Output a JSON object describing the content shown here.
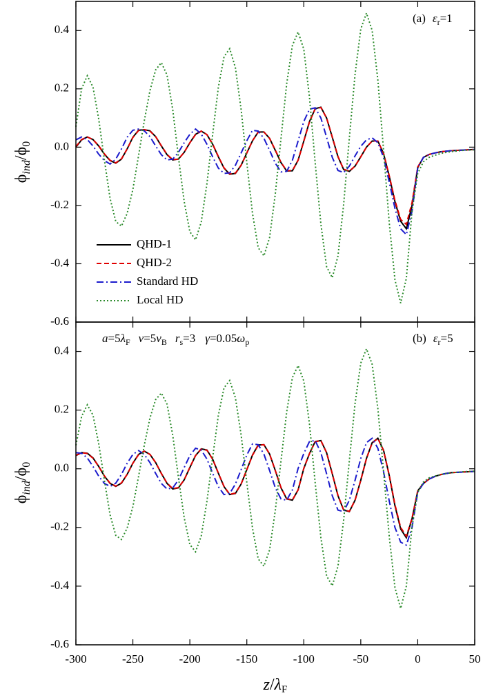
{
  "chart_data": [
    {
      "type": "line",
      "y_label": [
        "ϕ",
        "ind",
        "/ϕ",
        "0"
      ],
      "annotation": [
        "(a)",
        "ε",
        "r",
        "=1"
      ],
      "xlim": [
        -300,
        50
      ],
      "xticks": [
        -300,
        -250,
        -200,
        -150,
        -100,
        -50,
        0,
        50
      ],
      "ylim": [
        -0.6,
        0.5
      ],
      "yticks": [
        -0.6,
        -0.4,
        -0.2,
        {
          "value": 0,
          "label": "0.0"
        },
        0.2,
        0.4
      ],
      "legend": "lower left",
      "x": [
        -300,
        -295,
        -290,
        -285,
        -280,
        -275,
        -270,
        -265,
        -260,
        -255,
        -250,
        -245,
        -240,
        -235,
        -230,
        -225,
        -220,
        -215,
        -210,
        -205,
        -200,
        -195,
        -190,
        -185,
        -180,
        -175,
        -170,
        -165,
        -160,
        -155,
        -150,
        -145,
        -140,
        -135,
        -130,
        -125,
        -120,
        -115,
        -110,
        -105,
        -100,
        -95,
        -90,
        -85,
        -80,
        -75,
        -70,
        -65,
        -60,
        -55,
        -50,
        -45,
        -40,
        -35,
        -30,
        -25,
        -20,
        -15,
        -10,
        -5,
        0,
        5,
        10,
        15,
        20,
        25,
        30,
        35,
        40,
        45,
        50
      ],
      "series": [
        {
          "name": "QHD-1",
          "color": "#000000",
          "style": "solid",
          "values": [
            0.0,
            0.025,
            0.035,
            0.026,
            0.004,
            -0.024,
            -0.046,
            -0.055,
            -0.041,
            -0.006,
            0.034,
            0.058,
            0.06,
            0.056,
            0.036,
            0.004,
            -0.026,
            -0.044,
            -0.041,
            -0.018,
            0.015,
            0.044,
            0.055,
            0.043,
            0.01,
            -0.033,
            -0.072,
            -0.093,
            -0.09,
            -0.062,
            -0.02,
            0.022,
            0.052,
            0.052,
            0.03,
            -0.011,
            -0.053,
            -0.082,
            -0.081,
            -0.045,
            0.021,
            0.088,
            0.132,
            0.137,
            0.1,
            0.034,
            -0.033,
            -0.077,
            -0.083,
            -0.065,
            -0.033,
            0.0,
            0.021,
            0.021,
            -0.022,
            -0.1,
            -0.187,
            -0.254,
            -0.28,
            -0.2,
            -0.07,
            -0.035,
            -0.025,
            -0.02,
            -0.016,
            -0.014,
            -0.012,
            -0.011,
            -0.01,
            -0.009,
            -0.008
          ]
        },
        {
          "name": "QHD-2",
          "color": "#e00000",
          "style": "dashed",
          "values": [
            0.002,
            0.026,
            0.035,
            0.026,
            0.005,
            -0.023,
            -0.045,
            -0.054,
            -0.04,
            -0.006,
            0.033,
            0.057,
            0.06,
            0.055,
            0.036,
            0.005,
            -0.025,
            -0.043,
            -0.041,
            -0.018,
            0.015,
            0.043,
            0.055,
            0.043,
            0.011,
            -0.032,
            -0.071,
            -0.092,
            -0.089,
            -0.062,
            -0.02,
            0.022,
            0.051,
            0.052,
            0.03,
            -0.01,
            -0.052,
            -0.081,
            -0.08,
            -0.045,
            0.02,
            0.087,
            0.131,
            0.136,
            0.1,
            0.035,
            -0.032,
            -0.076,
            -0.082,
            -0.065,
            -0.033,
            0.0,
            0.021,
            0.021,
            -0.021,
            -0.098,
            -0.183,
            -0.248,
            -0.265,
            -0.19,
            -0.068,
            -0.035,
            -0.025,
            -0.02,
            -0.016,
            -0.014,
            -0.012,
            -0.011,
            -0.01,
            -0.009,
            -0.008
          ]
        },
        {
          "name": "Standard HD",
          "color": "#1a1acc",
          "style": "dashdot",
          "values": [
            0.025,
            0.035,
            0.026,
            0.004,
            -0.024,
            -0.046,
            -0.058,
            -0.041,
            -0.006,
            0.034,
            0.058,
            0.062,
            0.056,
            0.036,
            0.004,
            -0.026,
            -0.044,
            -0.041,
            -0.018,
            0.015,
            0.044,
            0.062,
            0.045,
            0.01,
            -0.033,
            -0.072,
            -0.09,
            -0.088,
            -0.062,
            -0.02,
            0.022,
            0.058,
            0.055,
            0.03,
            -0.011,
            -0.055,
            -0.085,
            -0.083,
            -0.045,
            0.021,
            0.088,
            0.13,
            0.135,
            0.1,
            0.034,
            -0.035,
            -0.08,
            -0.087,
            -0.065,
            -0.03,
            0.003,
            0.025,
            0.032,
            0.015,
            -0.035,
            -0.12,
            -0.21,
            -0.28,
            -0.3,
            -0.22,
            -0.07,
            -0.035,
            -0.025,
            -0.02,
            -0.016,
            -0.014,
            -0.012,
            -0.011,
            -0.01,
            -0.009,
            -0.008
          ]
        },
        {
          "name": "Local HD",
          "color": "#2a8a2a",
          "style": "dotted",
          "values": [
            0.07,
            0.2,
            0.245,
            0.206,
            0.097,
            -0.044,
            -0.176,
            -0.255,
            -0.271,
            -0.227,
            -0.145,
            -0.029,
            0.09,
            0.194,
            0.265,
            0.29,
            0.247,
            0.128,
            -0.034,
            -0.186,
            -0.29,
            -0.318,
            -0.257,
            -0.125,
            0.043,
            0.205,
            0.31,
            0.338,
            0.272,
            0.129,
            -0.053,
            -0.228,
            -0.345,
            -0.373,
            -0.31,
            -0.16,
            0.03,
            0.218,
            0.349,
            0.395,
            0.336,
            0.171,
            -0.054,
            -0.264,
            -0.41,
            -0.448,
            -0.373,
            -0.195,
            0.033,
            0.25,
            0.405,
            0.46,
            0.4,
            0.23,
            -0.01,
            -0.26,
            -0.455,
            -0.535,
            -0.45,
            -0.22,
            -0.09,
            -0.05,
            -0.035,
            -0.028,
            -0.022,
            -0.018,
            -0.015,
            -0.013,
            -0.011,
            -0.01,
            -0.009
          ]
        }
      ]
    },
    {
      "type": "line",
      "y_label": [
        "ϕ",
        "ind",
        "/ϕ",
        "0"
      ],
      "x_label": [
        "z",
        "/",
        "λ",
        "F"
      ],
      "annotation": [
        "(b)",
        "ε",
        "r",
        "=5"
      ],
      "parameters": [
        "a",
        "=5",
        "λ",
        "F",
        "v",
        "=5",
        "v",
        "B",
        "r",
        "s",
        "=3",
        "γ",
        "=0.05",
        "ω",
        "p"
      ],
      "xlim": [
        -300,
        50
      ],
      "xticks": [
        -300,
        -250,
        -200,
        -150,
        -100,
        -50,
        0,
        50
      ],
      "ylim": [
        -0.6,
        0.5
      ],
      "yticks": [
        -0.6,
        -0.4,
        -0.2,
        {
          "value": 0,
          "label": "0.0"
        },
        0.2,
        0.4
      ],
      "x": [
        -300,
        -295,
        -290,
        -285,
        -280,
        -275,
        -270,
        -265,
        -260,
        -255,
        -250,
        -245,
        -240,
        -235,
        -230,
        -225,
        -220,
        -215,
        -210,
        -205,
        -200,
        -195,
        -190,
        -185,
        -180,
        -175,
        -170,
        -165,
        -160,
        -155,
        -150,
        -145,
        -140,
        -135,
        -130,
        -125,
        -120,
        -115,
        -110,
        -105,
        -100,
        -95,
        -90,
        -85,
        -80,
        -75,
        -70,
        -65,
        -60,
        -55,
        -50,
        -45,
        -40,
        -35,
        -30,
        -25,
        -20,
        -15,
        -10,
        -5,
        0,
        5,
        10,
        15,
        20,
        25,
        30,
        35,
        40,
        45,
        50
      ],
      "series": [
        {
          "name": "QHD-1",
          "color": "#000000",
          "style": "solid",
          "values": [
            0.045,
            0.055,
            0.053,
            0.037,
            0.008,
            -0.025,
            -0.05,
            -0.06,
            -0.049,
            -0.019,
            0.019,
            0.049,
            0.06,
            0.049,
            0.021,
            -0.016,
            -0.05,
            -0.069,
            -0.065,
            -0.038,
            0.004,
            0.045,
            0.068,
            0.064,
            0.033,
            -0.015,
            -0.061,
            -0.088,
            -0.084,
            -0.052,
            -0.003,
            0.047,
            0.081,
            0.082,
            0.05,
            -0.006,
            -0.065,
            -0.103,
            -0.107,
            -0.072,
            0.001,
            0.052,
            0.093,
            0.096,
            0.055,
            -0.017,
            -0.092,
            -0.141,
            -0.146,
            -0.107,
            -0.039,
            0.035,
            0.089,
            0.104,
            0.063,
            -0.023,
            -0.126,
            -0.205,
            -0.235,
            -0.17,
            -0.075,
            -0.05,
            -0.035,
            -0.026,
            -0.02,
            -0.016,
            -0.013,
            -0.012,
            -0.011,
            -0.01,
            -0.009
          ]
        },
        {
          "name": "QHD-2",
          "color": "#e00000",
          "style": "dashed",
          "values": [
            0.046,
            0.055,
            0.052,
            0.036,
            0.008,
            -0.024,
            -0.049,
            -0.059,
            -0.048,
            -0.019,
            0.019,
            0.048,
            0.06,
            0.049,
            0.021,
            -0.016,
            -0.049,
            -0.068,
            -0.064,
            -0.038,
            0.005,
            0.045,
            0.067,
            0.063,
            0.033,
            -0.015,
            -0.06,
            -0.087,
            -0.083,
            -0.052,
            -0.003,
            0.046,
            0.08,
            0.082,
            0.05,
            -0.006,
            -0.064,
            -0.102,
            -0.106,
            -0.072,
            0.002,
            0.052,
            0.092,
            0.096,
            0.055,
            -0.017,
            -0.091,
            -0.14,
            -0.145,
            -0.107,
            -0.039,
            0.035,
            0.088,
            0.103,
            0.062,
            -0.022,
            -0.122,
            -0.2,
            -0.23,
            -0.168,
            -0.075,
            -0.05,
            -0.035,
            -0.026,
            -0.02,
            -0.016,
            -0.013,
            -0.012,
            -0.011,
            -0.01,
            -0.009
          ]
        },
        {
          "name": "Standard HD",
          "color": "#1a1acc",
          "style": "dashdot",
          "values": [
            0.055,
            0.053,
            0.037,
            0.008,
            -0.025,
            -0.05,
            -0.06,
            -0.049,
            -0.019,
            0.019,
            0.049,
            0.062,
            0.049,
            0.021,
            -0.016,
            -0.05,
            -0.069,
            -0.065,
            -0.038,
            0.004,
            0.045,
            0.07,
            0.064,
            0.033,
            -0.015,
            -0.061,
            -0.088,
            -0.084,
            -0.052,
            -0.003,
            0.047,
            0.085,
            0.082,
            0.05,
            -0.006,
            -0.065,
            -0.103,
            -0.107,
            -0.072,
            0.001,
            0.052,
            0.093,
            0.096,
            0.055,
            -0.017,
            -0.092,
            -0.141,
            -0.146,
            -0.107,
            -0.039,
            0.035,
            0.089,
            0.104,
            0.07,
            -0.01,
            -0.11,
            -0.2,
            -0.25,
            -0.26,
            -0.2,
            -0.08,
            -0.05,
            -0.035,
            -0.026,
            -0.02,
            -0.016,
            -0.013,
            -0.012,
            -0.011,
            -0.01,
            -0.009
          ]
        },
        {
          "name": "Local HD",
          "color": "#2a8a2a",
          "style": "dotted",
          "values": [
            0.08,
            0.178,
            0.218,
            0.183,
            0.086,
            -0.039,
            -0.157,
            -0.227,
            -0.241,
            -0.202,
            -0.129,
            -0.026,
            0.08,
            0.173,
            0.236,
            0.258,
            0.22,
            0.114,
            -0.03,
            -0.166,
            -0.258,
            -0.283,
            -0.229,
            -0.111,
            0.038,
            0.182,
            0.276,
            0.301,
            0.242,
            0.115,
            -0.047,
            -0.203,
            -0.307,
            -0.332,
            -0.276,
            -0.142,
            0.027,
            0.194,
            0.311,
            0.352,
            0.299,
            0.152,
            -0.048,
            -0.235,
            -0.365,
            -0.399,
            -0.332,
            -0.174,
            0.029,
            0.223,
            0.36,
            0.409,
            0.356,
            0.205,
            -0.009,
            -0.231,
            -0.405,
            -0.476,
            -0.4,
            -0.196,
            -0.08,
            -0.045,
            -0.031,
            -0.025,
            -0.02,
            -0.016,
            -0.013,
            -0.012,
            -0.01,
            -0.009,
            -0.008
          ]
        }
      ]
    }
  ]
}
